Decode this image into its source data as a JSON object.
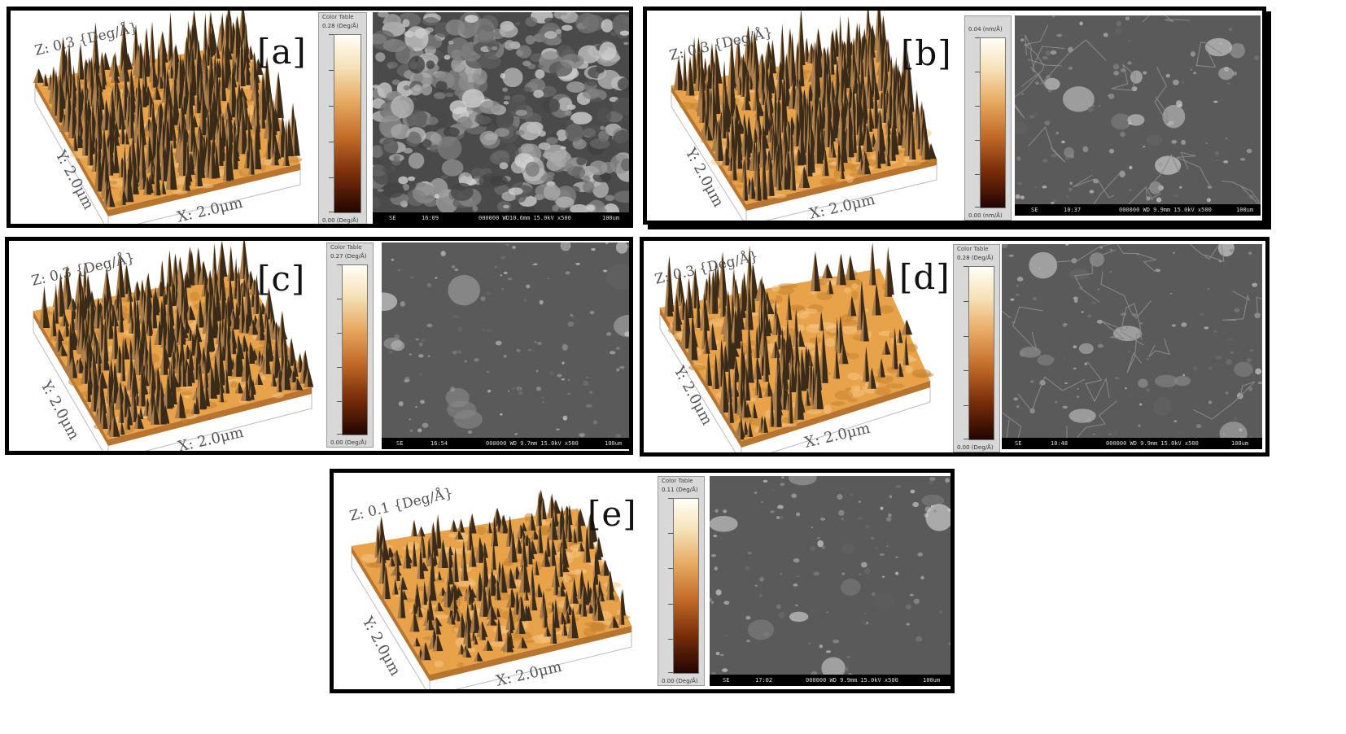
{
  "panels": [
    {
      "tag": "[a]",
      "z_label": "Z: 0.3 {Deg/Å}",
      "y_label": "Y: 2.0μm",
      "x_label": "X: 2.0μm",
      "color_table": {
        "title": "Color Table",
        "max": "0.28 (Deg/Å)",
        "min": "0.00 (Deg/Å)"
      },
      "sem": {
        "mode": "SE",
        "time": "16:09",
        "params": "000000 WD10.6mm 15.0kV x500",
        "scale": "100um"
      }
    },
    {
      "tag": "[b]",
      "z_label": "Z: 0.3 {Deg/Å}",
      "y_label": "Y: 2.0μm",
      "x_label": "X: 2.0μm",
      "color_table": {
        "title": "",
        "max": "0.04 (nm/Å)",
        "min": "0.00 (nm/Å)"
      },
      "sem": {
        "mode": "SE",
        "time": "10:37",
        "params": "000000 WD 9.9mm 15.0kV x500",
        "scale": "100um"
      }
    },
    {
      "tag": "[c]",
      "z_label": "Z: 0.3 {Deg/Å}",
      "y_label": "Y: 2.0μm",
      "x_label": "X: 2.0μm",
      "color_table": {
        "title": "Color Table",
        "max": "0.27 (Deg/Å)",
        "min": "0.00 (Deg/Å)"
      },
      "sem": {
        "mode": "SE",
        "time": "16:54",
        "params": "000000 WD 9.7mm 15.0kV x500",
        "scale": "100um"
      }
    },
    {
      "tag": "[d]",
      "z_label": "Z: 0.3 {Deg/Å}",
      "y_label": "Y: 2.0μm",
      "x_label": "X: 2.0μm",
      "color_table": {
        "title": "Color Table",
        "max": "0.28 (Deg/Å)",
        "min": "0.00 (Deg/Å)"
      },
      "sem": {
        "mode": "SE",
        "time": "10:48",
        "params": "000000 WD 9.9mm 15.0kV x500",
        "scale": "100um"
      }
    },
    {
      "tag": "[e]",
      "z_label": "Z: 0.1 {Deg/Å}",
      "y_label": "Y: 2.0μm",
      "x_label": "X: 2.0μm",
      "color_table": {
        "title": "Color Table",
        "max": "0.11 (Deg/Å)",
        "min": "0.00 (Deg/Å)"
      },
      "sem": {
        "mode": "SE",
        "time": "17:02",
        "params": "000000 WD 9.9mm 15.0kV x500",
        "scale": "100um"
      }
    }
  ],
  "colors": {
    "surface_base": "#e7a24a",
    "surface_light": "#f5c783",
    "spike_dark": "#3a2a18",
    "sem_gray": "#5a5a5a"
  }
}
